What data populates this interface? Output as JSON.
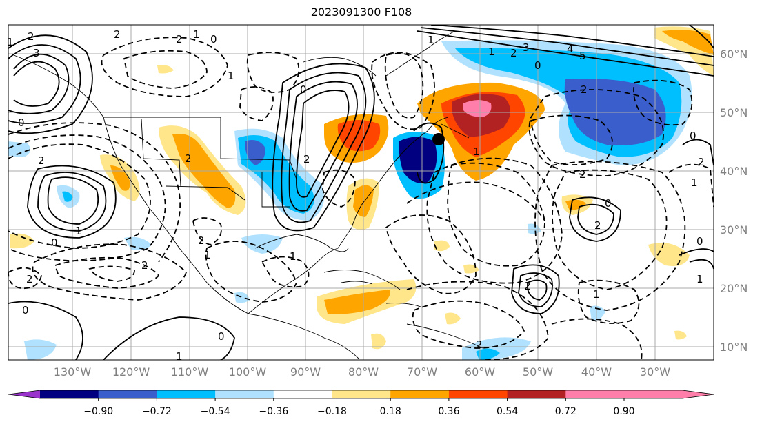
{
  "title": "2023091300 F108",
  "lon_labels": [
    "130°W",
    "120°W",
    "110°W",
    "100°W",
    "90°W",
    "80°W",
    "70°W",
    "60°W",
    "50°W",
    "40°W",
    "30°W"
  ],
  "lat_labels": [
    "60°N",
    "50°N",
    "40°N",
    "30°N",
    "20°N",
    "10°N"
  ],
  "colorbar": {
    "ticks": [
      "−0.90",
      "−0.72",
      "−0.54",
      "−0.36",
      "−0.18",
      "0.18",
      "0.36",
      "0.54",
      "0.72",
      "0.90"
    ],
    "colors": [
      "#9933cc",
      "#000080",
      "#3a5fcd",
      "#00bfff",
      "#b0e2ff",
      "#ffffff",
      "#ffe68a",
      "#ffa500",
      "#ff4500",
      "#b22222",
      "#ff7faa",
      "#ff7faa"
    ]
  },
  "contour_labels": [
    "2",
    "3",
    "2",
    "1",
    "0",
    "1",
    "2",
    "3",
    "4",
    "5",
    "0",
    "1",
    "1",
    "2",
    "2",
    "2",
    "0",
    "1",
    "2",
    "2",
    "1",
    "0",
    "2",
    "1",
    "2",
    "2",
    "0",
    "0",
    "1",
    "2",
    "1",
    "2",
    "1",
    "0",
    "1",
    "1",
    "0",
    "2",
    "0",
    "2",
    "2",
    "1",
    "0"
  ],
  "markers": [
    "storm-center"
  ]
}
